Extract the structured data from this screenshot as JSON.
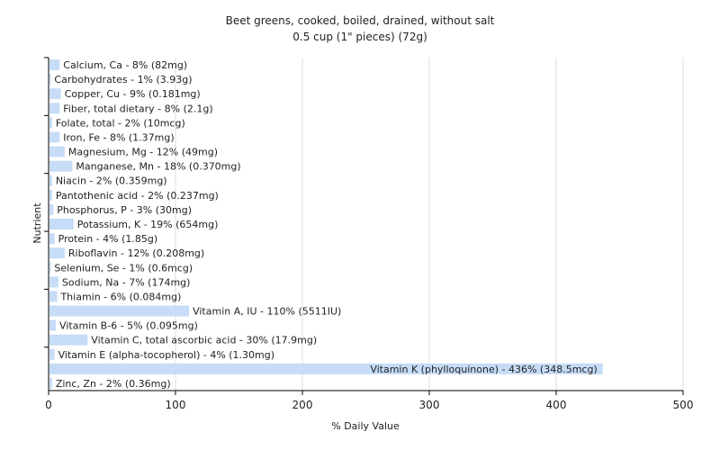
{
  "chart_data": {
    "type": "bar",
    "orientation": "horizontal",
    "title": "Beet greens, cooked, boiled, drained, without salt",
    "subtitle": "0.5 cup (1\" pieces) (72g)",
    "xlabel": "% Daily Value",
    "ylabel": "Nutrient",
    "xlim": [
      0,
      500
    ],
    "xticks": [
      0,
      100,
      200,
      300,
      400,
      500
    ],
    "grid": true,
    "colors": {
      "bar": "#c6dcf7",
      "grid": "#dddddd",
      "axis": "#000000",
      "text": "#222222"
    },
    "categories": [
      "Calcium, Ca",
      "Carbohydrates",
      "Copper, Cu",
      "Fiber, total dietary",
      "Folate, total",
      "Iron, Fe",
      "Magnesium, Mg",
      "Manganese, Mn",
      "Niacin",
      "Pantothenic acid",
      "Phosphorus, P",
      "Potassium, K",
      "Protein",
      "Riboflavin",
      "Selenium, Se",
      "Sodium, Na",
      "Thiamin",
      "Vitamin A, IU",
      "Vitamin B-6",
      "Vitamin C, total ascorbic acid",
      "Vitamin E (alpha-tocopherol)",
      "Vitamin K (phylloquinone)",
      "Zinc, Zn"
    ],
    "values": [
      8,
      1,
      9,
      8,
      2,
      8,
      12,
      18,
      2,
      2,
      3,
      19,
      4,
      12,
      1,
      7,
      6,
      110,
      5,
      30,
      4,
      436,
      2
    ],
    "amounts": [
      "82mg",
      "3.93g",
      "0.181mg",
      "2.1g",
      "10mcg",
      "1.37mg",
      "49mg",
      "0.370mg",
      "0.359mg",
      "0.237mg",
      "30mg",
      "654mg",
      "1.85g",
      "0.208mg",
      "0.6mcg",
      "174mg",
      "0.084mg",
      "5511IU",
      "0.095mg",
      "17.9mg",
      "1.30mg",
      "348.5mcg",
      "0.36mg"
    ],
    "labels": [
      "Calcium, Ca - 8% (82mg)",
      "Carbohydrates - 1% (3.93g)",
      "Copper, Cu - 9% (0.181mg)",
      "Fiber, total dietary - 8% (2.1g)",
      "Folate, total - 2% (10mcg)",
      "Iron, Fe - 8% (1.37mg)",
      "Magnesium, Mg - 12% (49mg)",
      "Manganese, Mn - 18% (0.370mg)",
      "Niacin - 2% (0.359mg)",
      "Pantothenic acid - 2% (0.237mg)",
      "Phosphorus, P - 3% (30mg)",
      "Potassium, K - 19% (654mg)",
      "Protein - 4% (1.85g)",
      "Riboflavin - 12% (0.208mg)",
      "Selenium, Se - 1% (0.6mcg)",
      "Sodium, Na - 7% (174mg)",
      "Thiamin - 6% (0.084mg)",
      "Vitamin A, IU - 110% (5511IU)",
      "Vitamin B-6 - 5% (0.095mg)",
      "Vitamin C, total ascorbic acid - 30% (17.9mg)",
      "Vitamin E (alpha-tocopherol) - 4% (1.30mg)",
      "Vitamin K (phylloquinone) - 436% (348.5mcg)",
      "Zinc, Zn - 2% (0.36mg)"
    ]
  }
}
